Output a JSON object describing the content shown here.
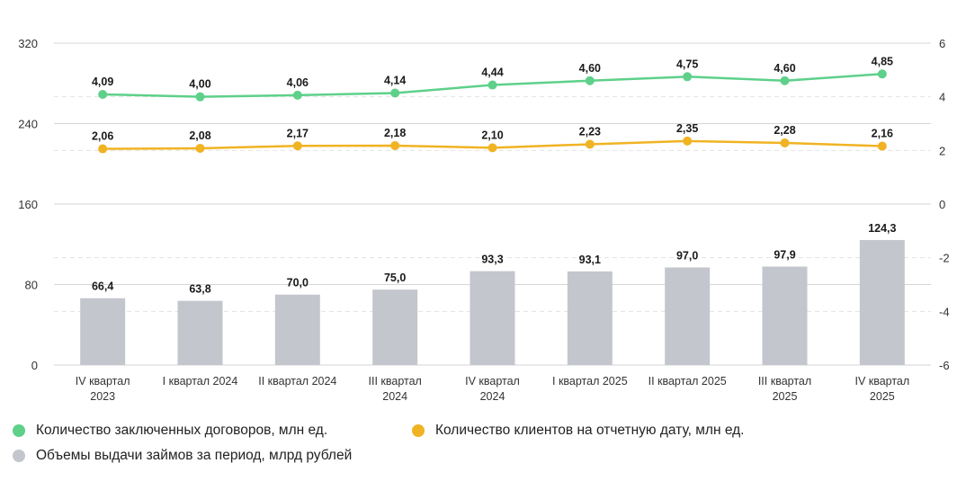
{
  "chart_data": {
    "type": "bar+line",
    "categories": [
      [
        "IV квартал",
        "2023"
      ],
      [
        "I квартал 2024"
      ],
      [
        "II квартал 2024"
      ],
      [
        "III квартал",
        "2024"
      ],
      [
        "IV квартал",
        "2024"
      ],
      [
        "I квартал 2025"
      ],
      [
        "II квартал 2025"
      ],
      [
        "III квартал",
        "2025"
      ],
      [
        "IV квартал",
        "2025"
      ]
    ],
    "left_axis": {
      "ylim": [
        0,
        320
      ],
      "ticks": [
        "0",
        "80",
        "160",
        "240",
        "320"
      ]
    },
    "right_axis": {
      "ylim": [
        -6,
        6
      ],
      "ticks": [
        "-6",
        "-4",
        "-2",
        "0",
        "2",
        "4",
        "6"
      ]
    },
    "series": [
      {
        "name": "Количество заключенных договоров, млн ед.",
        "type": "line",
        "axis": "right",
        "color": "#5ed08a",
        "values": [
          4.09,
          4.0,
          4.06,
          4.14,
          4.44,
          4.6,
          4.75,
          4.6,
          4.85
        ],
        "labels": [
          "4,09",
          "4,00",
          "4,06",
          "4,14",
          "4,44",
          "4,60",
          "4,75",
          "4,60",
          "4,85"
        ]
      },
      {
        "name": "Количество клиентов на отчетную дату, млн ед.",
        "type": "line",
        "axis": "right",
        "color": "#f0b323",
        "values": [
          2.06,
          2.08,
          2.17,
          2.18,
          2.1,
          2.23,
          2.35,
          2.28,
          2.16
        ],
        "labels": [
          "2,06",
          "2,08",
          "2,17",
          "2,18",
          "2,10",
          "2,23",
          "2,35",
          "2,28",
          "2,16"
        ]
      },
      {
        "name": "Объемы выдачи займов за период, млрд рублей",
        "type": "bar",
        "axis": "left",
        "color": "#c3c6cc",
        "values": [
          66.4,
          63.8,
          70.0,
          75.0,
          93.3,
          93.1,
          97.0,
          97.9,
          124.3
        ],
        "labels": [
          "66,4",
          "63,8",
          "70,0",
          "75,0",
          "93,3",
          "93,1",
          "97,0",
          "97,9",
          "124,3"
        ]
      }
    ],
    "grid": true,
    "legend_position": "bottom-left"
  }
}
